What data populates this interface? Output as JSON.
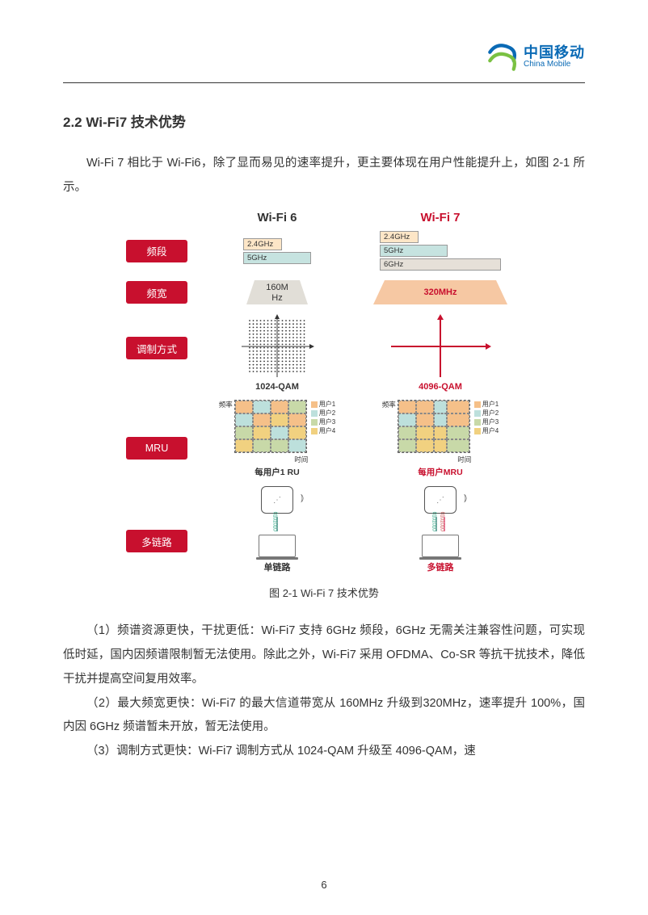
{
  "header": {
    "logo_cn": "中国移动",
    "logo_en": "China Mobile",
    "logo_color": "#0a6ab5"
  },
  "section_title": "2.2 Wi-Fi7 技术优势",
  "intro_text": "Wi-Fi 7 相比于 Wi-Fi6，除了显而易见的速率提升，更主要体现在用户性能提升上，如图 2-1 所示。",
  "figure": {
    "col_wifi6": "Wi-Fi 6",
    "col_wifi7": "Wi-Fi 7",
    "rows": {
      "band": {
        "label": "频段",
        "ghz24": "2.4GHz",
        "ghz5": "5GHz",
        "ghz6": "6GHz"
      },
      "bandwidth": {
        "label": "频宽",
        "w6": "160M\nHz",
        "w7": "320MHz"
      },
      "modulation": {
        "label": "调制方式",
        "w6": "1024-QAM",
        "w7": "4096-QAM"
      },
      "mru": {
        "label": "MRU",
        "axis_y": "频率",
        "axis_x": "时间",
        "user1": "用户1",
        "user2": "用户2",
        "user3": "用户3",
        "user4": "用户4",
        "cap6": "每用户1 RU",
        "cap7": "每用户MRU"
      },
      "multilink": {
        "label": "多链路",
        "bits": "0101010",
        "cap6": "单链路",
        "cap7": "多链路"
      }
    },
    "caption": "图 2-1 Wi-Fi 7 技术优势",
    "colors": {
      "row_label_bg": "#c8102e",
      "wifi7_accent": "#c8102e",
      "band_24": "#fde6c7",
      "band_5": "#c6e3e0",
      "band_6": "#e6e0d8",
      "user1": "#f5c089",
      "user2": "#bde0dc",
      "user3": "#c8d9a8",
      "user4": "#f1d180"
    }
  },
  "body": {
    "p1": "（1）频谱资源更快，干扰更低：Wi-Fi7 支持 6GHz 频段，6GHz 无需关注兼容性问题，可实现低时延，国内因频谱限制暂无法使用。除此之外，Wi-Fi7 采用 OFDMA、Co-SR 等抗干扰技术，降低干扰并提高空间复用效率。",
    "p2": "（2）最大频宽更快：Wi-Fi7 的最大信道带宽从 160MHz 升级到320MHz，速率提升 100%，国内因 6GHz 频谱暂未开放，暂无法使用。",
    "p3": "（3）调制方式更快：Wi-Fi7 调制方式从 1024-QAM 升级至 4096-QAM，速"
  },
  "page_number": "6"
}
